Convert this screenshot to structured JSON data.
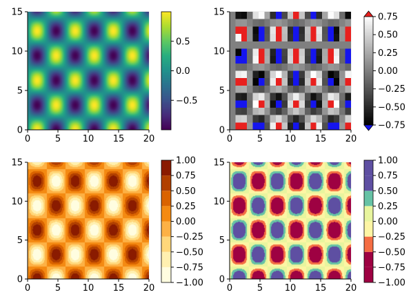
{
  "chart_data": [
    {
      "type": "heatmap",
      "panel": "top-left",
      "function": "z = sin(x) * cos(y)",
      "xlim": [
        0,
        20
      ],
      "ylim": [
        0,
        15
      ],
      "xticks": [
        0,
        5,
        10,
        15,
        20
      ],
      "yticks": [
        0,
        5,
        10,
        15
      ],
      "colormap": "viridis",
      "shading": "continuous",
      "colorbar": {
        "ticks": [
          0.5,
          0.0,
          -0.5
        ],
        "tick_labels": [
          "0.5",
          "0.0",
          "−0.5"
        ],
        "range": [
          -1,
          1
        ],
        "extend": "none"
      }
    },
    {
      "type": "heatmap",
      "panel": "top-right",
      "function": "z = sin(x) * cos(y)",
      "xlim": [
        0,
        20
      ],
      "ylim": [
        0,
        15
      ],
      "xticks": [
        0,
        5,
        10,
        15,
        20
      ],
      "yticks": [
        0,
        5,
        10,
        15
      ],
      "colormap": "grays",
      "color_range": [
        -0.75,
        0.75
      ],
      "high_clip_color": "#e8201e",
      "low_clip_color": "#1515ee",
      "shading": "pixelated",
      "colorbar": {
        "ticks": [
          0.75,
          0.5,
          0.25,
          0.0,
          -0.25,
          -0.5,
          -0.75
        ],
        "tick_labels": [
          "0.75",
          "0.50",
          "0.25",
          "0.00",
          "−0.25",
          "−0.50",
          "−0.75"
        ],
        "range": [
          -0.75,
          0.75
        ],
        "extend": "both"
      }
    },
    {
      "type": "heatmap",
      "panel": "bottom-left",
      "function": "z = sin(x) * cos(y)",
      "xlim": [
        0,
        20
      ],
      "ylim": [
        0,
        15
      ],
      "xticks": [
        0,
        5,
        10,
        15,
        20
      ],
      "yticks": [
        0,
        5,
        10,
        15
      ],
      "colormap": "YlOrBr-reversed (light = low, dark red = high)",
      "shading": "contourf",
      "levels": [
        -1.0,
        -0.75,
        -0.5,
        -0.25,
        0.0,
        0.25,
        0.5,
        0.75,
        1.0
      ],
      "level_colors": [
        "#fffde0",
        "#fff0b0",
        "#ffd77a",
        "#fdb145",
        "#f48a12",
        "#da6300",
        "#b14000",
        "#8a1b00"
      ],
      "colorbar": {
        "ticks": [
          1.0,
          0.75,
          0.5,
          0.25,
          0.0,
          -0.25,
          -0.5,
          -0.75,
          -1.0
        ],
        "tick_labels": [
          "1.00",
          "0.75",
          "0.50",
          "0.25",
          "0.00",
          "−0.25",
          "−0.50",
          "−0.75",
          "−1.00"
        ],
        "range": [
          -1,
          1
        ],
        "extend": "none"
      }
    },
    {
      "type": "heatmap",
      "panel": "bottom-right",
      "function": "z = sin(x) * cos(y)",
      "xlim": [
        0,
        20
      ],
      "ylim": [
        0,
        15
      ],
      "xticks": [
        0,
        5,
        10,
        15,
        20
      ],
      "yticks": [
        0,
        5,
        10,
        15
      ],
      "colormap": "Spectral",
      "shading": "contourf",
      "levels": [
        -1.0,
        -0.75,
        -0.5,
        -0.25,
        0.0,
        0.25,
        0.5,
        0.75,
        1.0
      ],
      "level_colors": [
        "#9e0142",
        "#9e0142",
        "#f46d43",
        "#fdf5a4",
        "#e8f59e",
        "#66c2a5",
        "#5e4fa2",
        "#5e4fa2"
      ],
      "colorbar": {
        "ticks": [
          1.0,
          0.75,
          0.5,
          0.25,
          0.0,
          -0.25,
          -0.5,
          -0.75,
          -1.0
        ],
        "tick_labels": [
          "1.00",
          "0.75",
          "0.50",
          "0.25",
          "0.00",
          "−0.25",
          "−0.50",
          "−0.75",
          "−1.00"
        ],
        "range": [
          -1,
          1
        ],
        "extend": "none"
      }
    }
  ]
}
